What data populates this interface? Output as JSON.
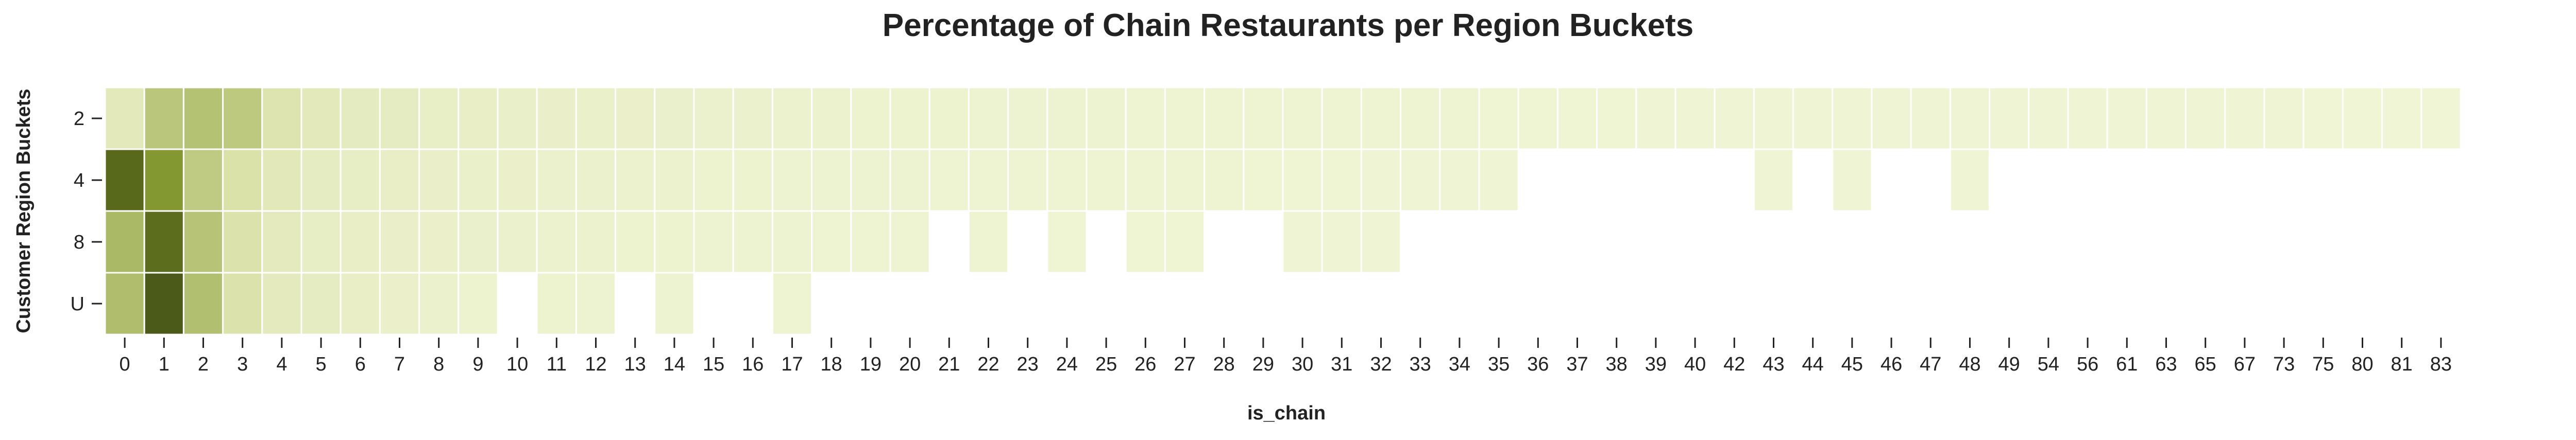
{
  "chart_data": {
    "type": "heatmap",
    "title": "Percentage of Chain Restaurants per Region Buckets",
    "xlabel": "is_chain",
    "ylabel": "Customer Region Buckets",
    "x_categories": [
      "0",
      "1",
      "2",
      "3",
      "4",
      "5",
      "6",
      "7",
      "8",
      "9",
      "10",
      "11",
      "12",
      "13",
      "14",
      "15",
      "16",
      "17",
      "18",
      "19",
      "20",
      "21",
      "22",
      "23",
      "24",
      "25",
      "26",
      "27",
      "28",
      "29",
      "30",
      "31",
      "32",
      "33",
      "34",
      "35",
      "36",
      "37",
      "38",
      "39",
      "40",
      "42",
      "43",
      "44",
      "45",
      "46",
      "47",
      "48",
      "49",
      "54",
      "56",
      "61",
      "63",
      "65",
      "67",
      "73",
      "75",
      "80",
      "81",
      "83"
    ],
    "y_categories": [
      "2",
      "4",
      "8",
      "U"
    ],
    "values": [
      [
        4.5,
        14.5,
        15.5,
        13.8,
        6.5,
        4.6,
        3.7,
        3.3,
        2.8,
        2.5,
        2.3,
        2.1,
        2.0,
        1.8,
        1.7,
        1.6,
        1.5,
        1.4,
        1.3,
        1.2,
        1.2,
        1.1,
        1.0,
        1.0,
        0.9,
        0.9,
        0.8,
        0.8,
        0.8,
        0.7,
        0.7,
        0.7,
        0.6,
        0.6,
        0.6,
        0.5,
        0.5,
        0.5,
        0.5,
        0.4,
        0.4,
        0.4,
        0.4,
        0.3,
        0.3,
        0.3,
        0.3,
        0.3,
        0.3,
        0.2,
        0.2,
        0.2,
        0.2,
        0.2,
        0.2,
        0.2,
        0.1,
        0.1,
        0.1,
        0.1
      ],
      [
        32.0,
        25.0,
        13.5,
        7.5,
        5.0,
        3.5,
        3.0,
        2.5,
        2.2,
        2.0,
        1.8,
        1.6,
        1.5,
        1.4,
        1.3,
        1.2,
        1.1,
        1.0,
        1.0,
        0.9,
        0.9,
        0.8,
        0.8,
        0.7,
        0.7,
        0.7,
        0.6,
        0.6,
        0.6,
        0.5,
        0.5,
        0.5,
        0.4,
        0.4,
        0.4,
        0.3,
        null,
        null,
        null,
        null,
        null,
        null,
        0.2,
        null,
        0.2,
        null,
        null,
        0.2,
        null,
        null,
        null,
        null,
        null,
        null,
        null,
        null,
        null,
        null,
        null,
        null
      ],
      [
        17.5,
        31.5,
        15.0,
        7.0,
        4.0,
        3.0,
        2.5,
        2.2,
        1.9,
        1.7,
        1.5,
        1.4,
        1.3,
        1.2,
        1.1,
        1.0,
        0.9,
        0.9,
        0.8,
        0.8,
        0.7,
        null,
        0.6,
        null,
        0.5,
        null,
        0.5,
        0.5,
        null,
        null,
        0.4,
        0.4,
        0.3,
        null,
        null,
        null,
        null,
        null,
        null,
        null,
        null,
        null,
        null,
        null,
        null,
        null,
        null,
        null,
        null,
        null,
        null,
        null,
        null,
        null,
        null,
        null,
        null,
        null,
        null,
        null
      ],
      [
        16.5,
        34.0,
        16.0,
        7.0,
        4.0,
        3.5,
        2.5,
        1.8,
        1.5,
        1.2,
        null,
        1.1,
        1.0,
        null,
        0.9,
        null,
        null,
        0.8,
        null,
        null,
        null,
        null,
        null,
        null,
        null,
        null,
        null,
        null,
        null,
        null,
        null,
        null,
        null,
        null,
        null,
        null,
        null,
        null,
        null,
        null,
        null,
        null,
        null,
        null,
        null,
        null,
        null,
        null,
        null,
        null,
        null,
        null,
        null,
        null,
        null,
        null,
        null,
        null,
        null,
        null
      ]
    ],
    "vmin": 0,
    "vmax": 36,
    "colorbar_ticks": [
      0,
      10,
      20,
      30
    ],
    "colormap": [
      "#f0f5d6",
      "#d6dda0",
      "#a7b763",
      "#7a8f24",
      "#3d4a16"
    ]
  }
}
